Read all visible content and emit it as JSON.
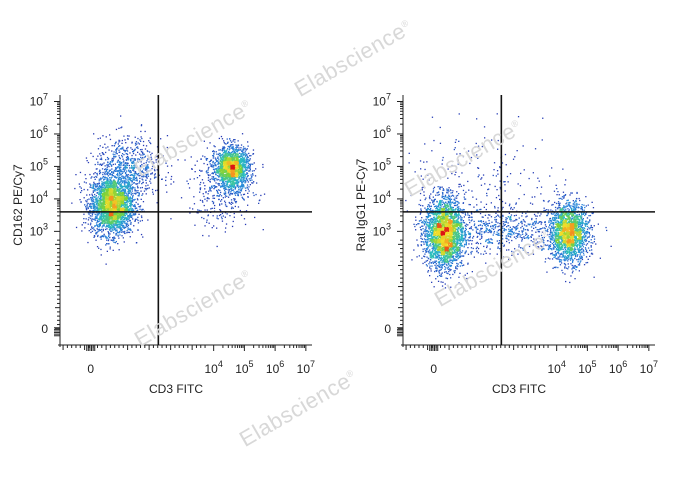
{
  "watermark": {
    "text": "Elabscience",
    "mark": "®"
  },
  "chart_data": [
    {
      "type": "scatter",
      "subtype": "flow-cytometry-density-dot-plot",
      "xlabel": "CD3 FITC",
      "ylabel": "CD162 PE/Cy7",
      "x_tick_labels": [
        {
          "base": "0",
          "exp": ""
        },
        {
          "base": "10",
          "exp": "4"
        },
        {
          "base": "10",
          "exp": "5"
        },
        {
          "base": "10",
          "exp": "6"
        },
        {
          "base": "10",
          "exp": "7"
        }
      ],
      "y_tick_labels": [
        {
          "base": "0",
          "exp": ""
        },
        {
          "base": "10",
          "exp": "3"
        },
        {
          "base": "10",
          "exp": "4"
        },
        {
          "base": "10",
          "exp": "5"
        },
        {
          "base": "10",
          "exp": "6"
        },
        {
          "base": "10",
          "exp": "7"
        }
      ],
      "x_ticks": [
        0,
        4,
        5,
        6,
        7
      ],
      "y_ticks": [
        0,
        3,
        4,
        5,
        6,
        7
      ],
      "x_range": [
        -1,
        7.2
      ],
      "y_range": [
        -0.5,
        7.2
      ],
      "quadrant_gate": {
        "x": 2.2,
        "y": 3.6
      },
      "populations": [
        {
          "name": "CD3- CD162+",
          "x_center": 0.7,
          "y_center": 3.8,
          "x_sd": 0.35,
          "y_sd": 0.45,
          "n": 2600
        },
        {
          "name": "CD3- CD162 high tail",
          "x_center": 1.2,
          "y_center": 4.9,
          "x_sd": 0.55,
          "y_sd": 0.5,
          "n": 700
        },
        {
          "name": "CD3+ CD162+",
          "x_center": 4.6,
          "y_center": 4.95,
          "x_sd": 0.28,
          "y_sd": 0.32,
          "n": 1600
        },
        {
          "name": "CD3+ spread",
          "x_center": 4.3,
          "y_center": 4.3,
          "x_sd": 0.55,
          "y_sd": 0.6,
          "n": 350
        }
      ]
    },
    {
      "type": "scatter",
      "subtype": "flow-cytometry-density-dot-plot",
      "xlabel": "CD3 FITC",
      "ylabel": "Rat IgG1 PE-Cy7",
      "x_tick_labels": [
        {
          "base": "0",
          "exp": ""
        },
        {
          "base": "10",
          "exp": "4"
        },
        {
          "base": "10",
          "exp": "5"
        },
        {
          "base": "10",
          "exp": "6"
        },
        {
          "base": "10",
          "exp": "7"
        }
      ],
      "y_tick_labels": [
        {
          "base": "0",
          "exp": ""
        },
        {
          "base": "10",
          "exp": "3"
        },
        {
          "base": "10",
          "exp": "4"
        },
        {
          "base": "10",
          "exp": "5"
        },
        {
          "base": "10",
          "exp": "6"
        },
        {
          "base": "10",
          "exp": "7"
        }
      ],
      "x_ticks": [
        0,
        4,
        5,
        6,
        7
      ],
      "y_ticks": [
        0,
        3,
        4,
        5,
        6,
        7
      ],
      "x_range": [
        -1,
        7.2
      ],
      "y_range": [
        -0.5,
        7.2
      ],
      "quadrant_gate": {
        "x": 2.2,
        "y": 3.6
      },
      "populations": [
        {
          "name": "CD3- isotype",
          "x_center": 0.35,
          "y_center": 2.95,
          "x_sd": 0.32,
          "y_sd": 0.55,
          "n": 2600
        },
        {
          "name": "CD3+ isotype",
          "x_center": 4.4,
          "y_center": 2.95,
          "x_sd": 0.32,
          "y_sd": 0.45,
          "n": 1900
        },
        {
          "name": "bridge",
          "x_center": 2.4,
          "y_center": 3.0,
          "x_sd": 0.9,
          "y_sd": 0.35,
          "n": 500
        },
        {
          "name": "sparse above gate",
          "x_center": 1.5,
          "y_center": 4.3,
          "x_sd": 1.4,
          "y_sd": 0.9,
          "n": 250
        }
      ]
    }
  ]
}
